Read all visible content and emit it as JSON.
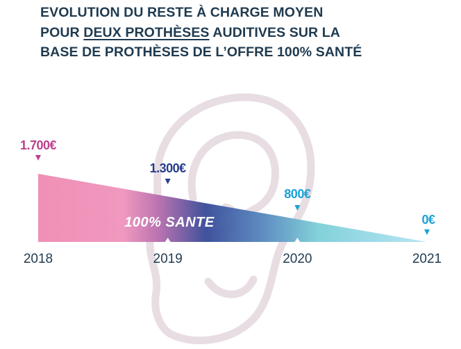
{
  "title": {
    "line1": "EVOLUTION DU RESTE À CHARGE MOYEN",
    "line2_before": "POUR ",
    "line2_underlined": "DEUX PROTHÈSES",
    "line2_after": " AUDITIVES SUR LA",
    "line3": "BASE DE PROTHÈSES DE L’OFFRE 100% SANTÉ"
  },
  "badge": "100% SANTE",
  "colors": {
    "title": "#1f3a4f",
    "pink": "#c0408e",
    "navy": "#283c8a",
    "cyan": "#1ba3d6",
    "ear": "#e8dde3",
    "gradient": [
      "#f08cb4",
      "#ef95bd",
      "#b86fae",
      "#3a4d9a",
      "#5a8ac0",
      "#7fd0d8",
      "#b6e4f5"
    ]
  },
  "chart_data": {
    "type": "area",
    "title": "EVOLUTION DU RESTE À CHARGE MOYEN POUR DEUX PROTHÈSES AUDITIVES SUR LA BASE DE PROTHÈSES DE L’OFFRE 100% SANTÉ",
    "x": [
      "2018",
      "2019",
      "2020",
      "2021"
    ],
    "values": [
      1700,
      1300,
      800,
      0
    ],
    "labels": [
      "1.700€",
      "1.300€",
      "800€",
      "0€"
    ],
    "label_colors": [
      "#c0408e",
      "#283c8a",
      "#1ba3d6",
      "#1ba3d6"
    ],
    "ylim": [
      0,
      1700
    ],
    "grid": false
  }
}
